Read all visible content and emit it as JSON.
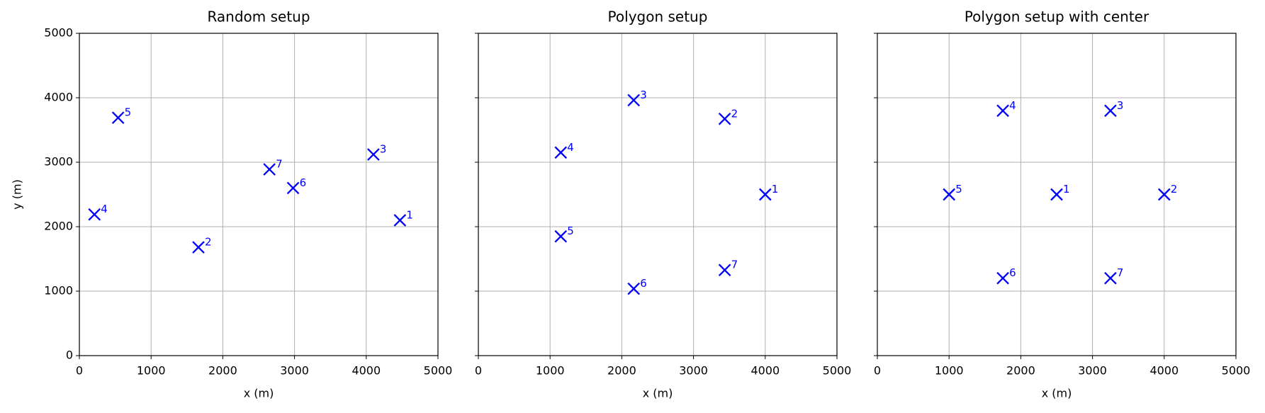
{
  "chart_data": [
    {
      "type": "scatter",
      "title": "Random setup",
      "xlabel": "x (m)",
      "ylabel": "y (m)",
      "x": [
        4470,
        1660,
        4100,
        210,
        540,
        2980,
        2650
      ],
      "values": [
        2100,
        1680,
        3120,
        2190,
        3690,
        2600,
        2890
      ],
      "point_labels": [
        "1",
        "2",
        "3",
        "4",
        "5",
        "6",
        "7"
      ],
      "color": "#0000ff",
      "marker": "x",
      "xlim": [
        0,
        5000
      ],
      "ylim": [
        0,
        5000
      ],
      "xticks": [
        0,
        1000,
        2000,
        3000,
        4000,
        5000
      ],
      "yticks": [
        0,
        1000,
        2000,
        3000,
        4000,
        5000
      ],
      "show_ytick_labels": true,
      "grid": true
    },
    {
      "type": "scatter",
      "title": "Polygon setup",
      "xlabel": "x (m)",
      "x": [
        4000,
        3435,
        2166,
        1149,
        1149,
        2166,
        3435
      ],
      "values": [
        2500,
        3673,
        3962,
        3151,
        1849,
        1038,
        1327
      ],
      "point_labels": [
        "1",
        "2",
        "3",
        "4",
        "5",
        "6",
        "7"
      ],
      "color": "#0000ff",
      "marker": "x",
      "xlim": [
        0,
        5000
      ],
      "ylim": [
        0,
        5000
      ],
      "xticks": [
        0,
        1000,
        2000,
        3000,
        4000,
        5000
      ],
      "yticks": [
        0,
        1000,
        2000,
        3000,
        4000,
        5000
      ],
      "show_ytick_labels": false,
      "grid": true
    },
    {
      "type": "scatter",
      "title": "Polygon setup with center",
      "xlabel": "x (m)",
      "x": [
        2500,
        4000,
        3250,
        1750,
        1000,
        1750,
        3250
      ],
      "values": [
        2500,
        2500,
        3799,
        3799,
        2500,
        1201,
        1201
      ],
      "point_labels": [
        "1",
        "2",
        "3",
        "4",
        "5",
        "6",
        "7"
      ],
      "color": "#0000ff",
      "marker": "x",
      "xlim": [
        0,
        5000
      ],
      "ylim": [
        0,
        5000
      ],
      "xticks": [
        0,
        1000,
        2000,
        3000,
        4000,
        5000
      ],
      "yticks": [
        0,
        1000,
        2000,
        3000,
        4000,
        5000
      ],
      "show_ytick_labels": false,
      "grid": true
    }
  ]
}
